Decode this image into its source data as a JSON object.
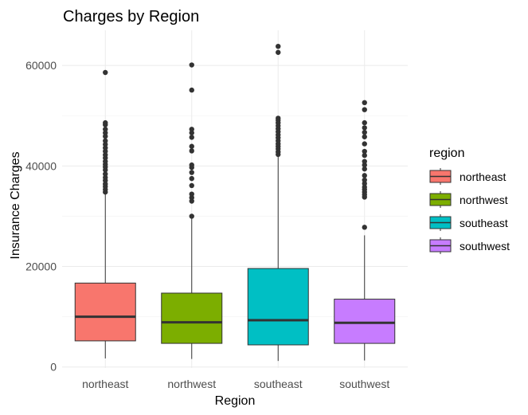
{
  "chart_data": {
    "type": "boxplot",
    "title": "Charges by Region",
    "xlabel": "Region",
    "ylabel": "Insurance Charges",
    "ylim": [
      -200,
      67000
    ],
    "y_ticks": [
      0,
      20000,
      40000,
      60000
    ],
    "y_tick_labels": [
      "0",
      "20000",
      "40000",
      "60000"
    ],
    "grid": true,
    "legend": {
      "title": "region",
      "position": "right",
      "entries": [
        "northeast",
        "northwest",
        "southeast",
        "southwest"
      ]
    },
    "categories": [
      "northeast",
      "northwest",
      "southeast",
      "southwest"
    ],
    "colors": {
      "northeast": "#F8766D",
      "northwest": "#7CAE00",
      "southeast": "#00BFC4",
      "southwest": "#C77CFF"
    },
    "series": [
      {
        "category": "northeast",
        "whisker_low": 1700,
        "q1": 5200,
        "median": 10000,
        "q3": 16700,
        "whisker_high": 34500,
        "outliers": [
          34800,
          35300,
          35900,
          36400,
          37100,
          37700,
          38400,
          39200,
          39800,
          40300,
          40900,
          41600,
          42200,
          42900,
          43600,
          44300,
          45000,
          45900,
          46600,
          47300,
          48200,
          48600,
          58600
        ]
      },
      {
        "category": "northwest",
        "whisker_low": 1600,
        "q1": 4700,
        "median": 8900,
        "q3": 14700,
        "whisker_high": 30000,
        "outliers": [
          30000,
          33000,
          33700,
          34400,
          36100,
          37500,
          38700,
          39700,
          40200,
          43000,
          43900,
          45700,
          46600,
          47300,
          55100,
          60100
        ]
      },
      {
        "category": "southeast",
        "whisker_low": 1200,
        "q1": 4400,
        "median": 9300,
        "q3": 19600,
        "whisker_high": 42100,
        "outliers": [
          42300,
          42800,
          43400,
          43900,
          44400,
          45000,
          45600,
          46200,
          46800,
          47400,
          48000,
          48600,
          49100,
          49500,
          62600,
          63800
        ]
      },
      {
        "category": "southwest",
        "whisker_low": 1300,
        "q1": 4700,
        "median": 8800,
        "q3": 13500,
        "whisker_high": 26200,
        "outliers": [
          27800,
          33800,
          34300,
          34800,
          35300,
          35800,
          36500,
          37200,
          38100,
          39400,
          40200,
          40900,
          42100,
          42900,
          44400,
          45800,
          46700,
          47600,
          48600,
          51200,
          52600
        ]
      }
    ]
  }
}
